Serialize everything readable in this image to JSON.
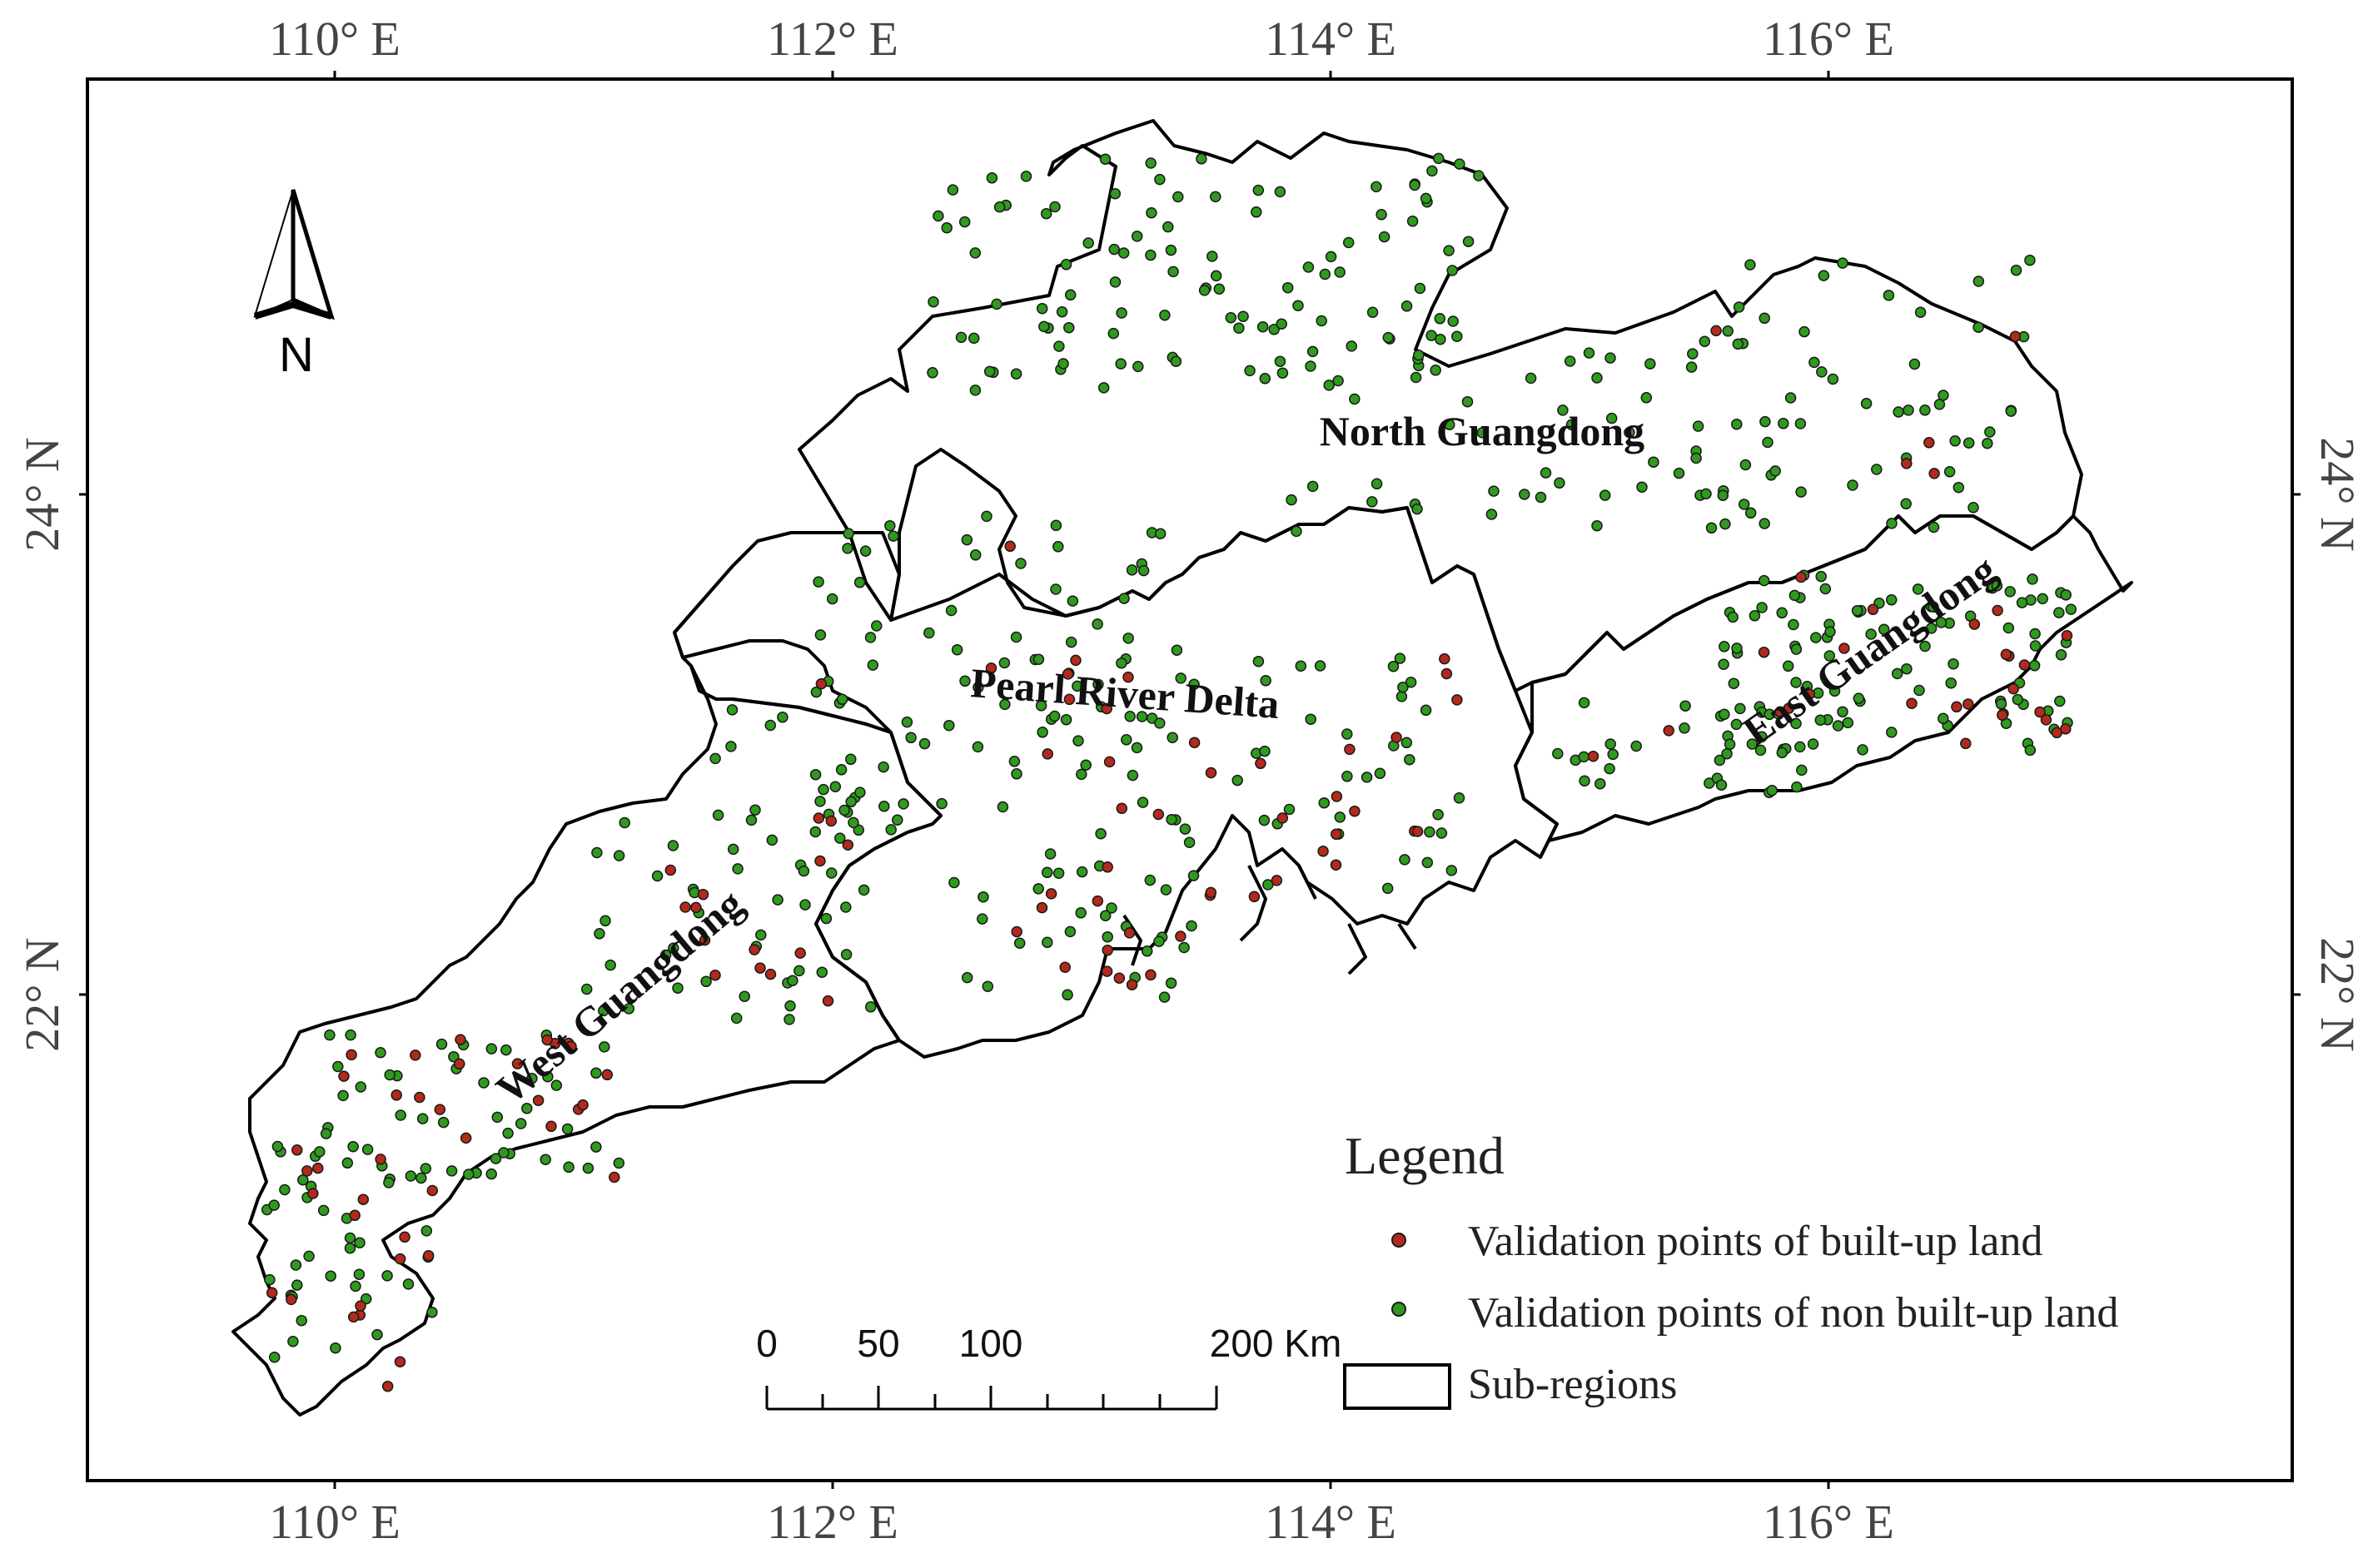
{
  "axes": {
    "lon_labels": [
      "110° E",
      "112° E",
      "114° E",
      "116° E"
    ],
    "lat_labels": [
      "24° N",
      "22° N"
    ]
  },
  "regions": {
    "north": "North Guangdong",
    "prd": "Pearl River Delta",
    "east": "East Guangdong",
    "west": "West Guangdong"
  },
  "north_arrow": {
    "label": "N"
  },
  "scale_bar": {
    "labels": [
      "0",
      "50",
      "100",
      "200 Km"
    ]
  },
  "legend": {
    "title": "Legend",
    "built_up": {
      "label": "Validation points of built-up land",
      "color": "#b22a1c"
    },
    "non_built_up": {
      "label": "Validation points of non built-up land",
      "color": "#2f9a1e"
    },
    "subregions": {
      "label": "Sub-regions"
    }
  },
  "colors": {
    "outline": "#000000",
    "point_stroke": "#1a1a1a"
  }
}
